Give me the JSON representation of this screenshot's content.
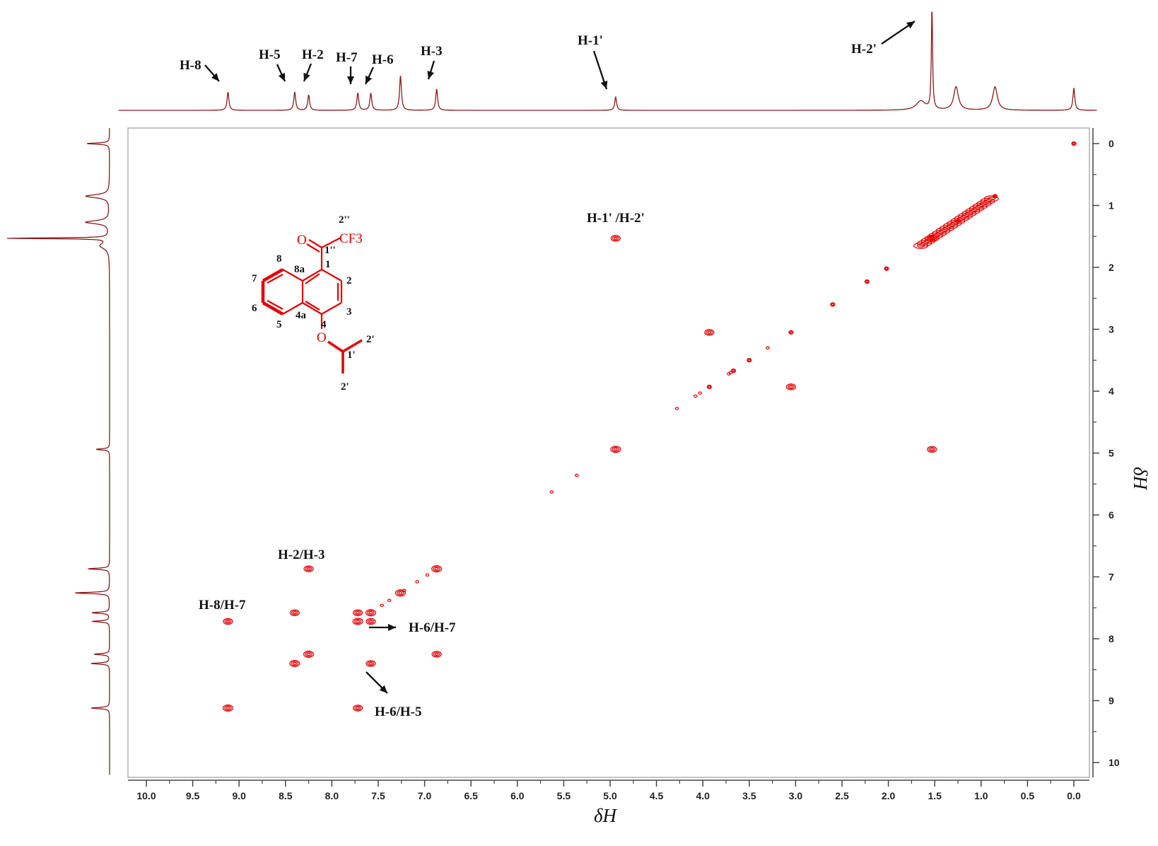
{
  "chart_data": {
    "type": "heatmap",
    "subtype": "2D NMR COSY contour plot with 1D projections",
    "xlabel": "δH",
    "ylabel": "δH",
    "x_axis": {
      "range": [
        10.2,
        -0.25
      ],
      "reversed": true,
      "tick_labels": [
        "10.0",
        "9.5",
        "9.0",
        "8.5",
        "8.0",
        "7.5",
        "7.0",
        "6.5",
        "6.0",
        "5.5",
        "5.0",
        "4.5",
        "4.0",
        "3.5",
        "3.0",
        "2.5",
        "2.0",
        "1.5",
        "1.0",
        "0.5",
        "0.0"
      ]
    },
    "y_axis": {
      "range": [
        -0.25,
        10.2
      ],
      "position": "right",
      "tick_labels": [
        "0",
        "1",
        "2",
        "3",
        "4",
        "5",
        "6",
        "7",
        "8",
        "9",
        "10"
      ]
    },
    "colors": {
      "contour": "#e00000",
      "projection": "#8b1a1a",
      "axis": "#444444",
      "label": "#111111"
    },
    "diagonal_peaks": [
      {
        "x": 9.12,
        "y": 9.12
      },
      {
        "x": 8.4,
        "y": 8.4
      },
      {
        "x": 8.25,
        "y": 8.25
      },
      {
        "x": 7.72,
        "y": 7.72
      },
      {
        "x": 7.58,
        "y": 7.58
      },
      {
        "x": 7.26,
        "y": 7.26
      },
      {
        "x": 6.87,
        "y": 6.87
      },
      {
        "x": 4.94,
        "y": 4.94
      },
      {
        "x": 3.93,
        "y": 3.93
      },
      {
        "x": 3.05,
        "y": 3.05
      },
      {
        "x": 3.5,
        "y": 3.5
      },
      {
        "x": 3.67,
        "y": 3.67
      },
      {
        "x": 2.6,
        "y": 2.6
      },
      {
        "x": 2.23,
        "y": 2.23
      },
      {
        "x": 2.02,
        "y": 2.02
      },
      {
        "x": 1.53,
        "y": 1.53
      },
      {
        "x": 1.25,
        "y": 1.25
      },
      {
        "x": 0.85,
        "y": 0.85
      },
      {
        "x": 0.0,
        "y": 0.0
      }
    ],
    "cross_peaks": [
      {
        "x": 9.12,
        "y": 7.72
      },
      {
        "x": 7.72,
        "y": 9.12
      },
      {
        "x": 8.4,
        "y": 7.58
      },
      {
        "x": 7.58,
        "y": 8.4
      },
      {
        "x": 8.25,
        "y": 6.87
      },
      {
        "x": 6.87,
        "y": 8.25
      },
      {
        "x": 7.72,
        "y": 7.58
      },
      {
        "x": 7.58,
        "y": 7.72
      },
      {
        "x": 4.94,
        "y": 1.53
      },
      {
        "x": 1.53,
        "y": 4.94
      },
      {
        "x": 3.93,
        "y": 3.05
      },
      {
        "x": 3.05,
        "y": 3.93
      }
    ],
    "projection_peaks_1d": [
      {
        "shift": 9.12,
        "height": 0.18
      },
      {
        "shift": 8.4,
        "height": 0.18
      },
      {
        "shift": 8.25,
        "height": 0.15
      },
      {
        "shift": 7.72,
        "height": 0.17
      },
      {
        "shift": 7.58,
        "height": 0.17
      },
      {
        "shift": 7.26,
        "height": 0.34
      },
      {
        "shift": 6.87,
        "height": 0.21
      },
      {
        "shift": 4.94,
        "height": 0.13
      },
      {
        "shift": 1.65,
        "height": 0.09
      },
      {
        "shift": 1.53,
        "height": 1.0
      },
      {
        "shift": 1.27,
        "height": 0.23
      },
      {
        "shift": 0.85,
        "height": 0.23
      },
      {
        "shift": 0.0,
        "height": 0.22
      }
    ],
    "top_annotations": [
      {
        "label": "H-8",
        "x": 9.12
      },
      {
        "label": "H-5",
        "x": 8.4
      },
      {
        "label": "H-2",
        "x": 8.25
      },
      {
        "label": "H-7",
        "x": 7.72
      },
      {
        "label": "H-6",
        "x": 7.58
      },
      {
        "label": "H-3",
        "x": 6.87
      },
      {
        "label": "H-1'",
        "x": 4.94
      },
      {
        "label": "H-2'",
        "x": 1.53
      }
    ],
    "cross_peak_annotations": [
      {
        "label": "H-1' /H-2'"
      },
      {
        "label": "H-2/H-3"
      },
      {
        "label": "H-8/H-7"
      },
      {
        "label": "H-6/H-7"
      },
      {
        "label": "H-6/H-5"
      }
    ],
    "structure": {
      "color": "#e00000",
      "atom_labels": [
        "O",
        "CF3",
        "2''",
        "1''",
        "1",
        "2",
        "3",
        "4",
        "4a",
        "5",
        "6",
        "7",
        "8",
        "8a",
        "1'",
        "2'",
        "2'"
      ]
    }
  }
}
